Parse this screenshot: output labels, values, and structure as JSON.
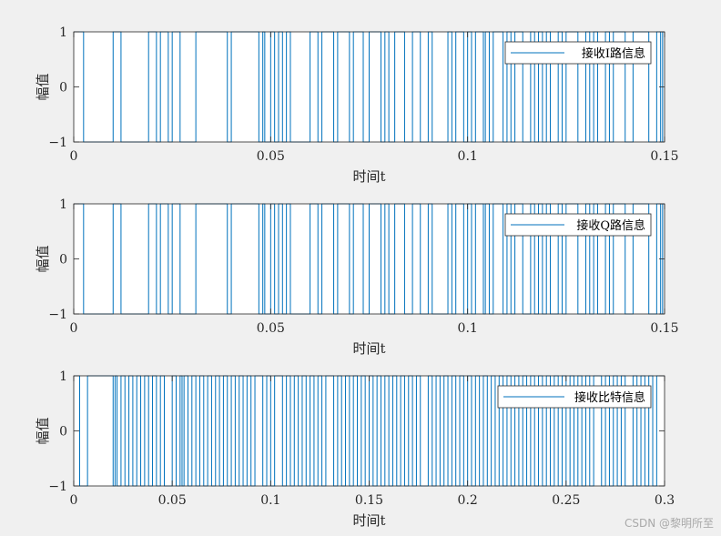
{
  "watermark": "CSDN @黎明所至",
  "colors": {
    "signal": "#0072BD",
    "axis": "#262626",
    "plot_bg": "#ffffff",
    "figure_bg": "#f0f0f0"
  },
  "chart_data": [
    {
      "type": "line",
      "subtype": "stairs",
      "xlabel": "时间t",
      "ylabel": "幅值",
      "xlim": [
        0,
        0.15
      ],
      "ylim": [
        -1,
        1
      ],
      "xticks": [
        0,
        0.05,
        0.1,
        0.15
      ],
      "xtick_labels": [
        "0",
        "0.05",
        "0.1",
        "0.15"
      ],
      "yticks": [
        -1,
        0,
        1
      ],
      "ytick_labels": [
        "−1",
        "0",
        "1"
      ],
      "legend_position": "top-right",
      "series": [
        {
          "name": "接收I路信息",
          "start_value": 1,
          "transitions": [
            0.0025,
            0.01,
            0.012,
            0.019,
            0.021,
            0.022,
            0.024,
            0.025,
            0.027,
            0.031,
            0.039,
            0.04,
            0.047,
            0.048,
            0.0485,
            0.05,
            0.051,
            0.052,
            0.053,
            0.054,
            0.055,
            0.06,
            0.062,
            0.063,
            0.066,
            0.067,
            0.07,
            0.071,
            0.0735,
            0.075,
            0.078,
            0.079,
            0.08,
            0.0815,
            0.084,
            0.086,
            0.088,
            0.09,
            0.091,
            0.095,
            0.096,
            0.097,
            0.099,
            0.1,
            0.101,
            0.102,
            0.104,
            0.1045,
            0.1055,
            0.1065,
            0.109,
            0.11,
            0.111,
            0.112,
            0.114,
            0.116,
            0.117,
            0.118,
            0.119,
            0.12,
            0.121,
            0.123,
            0.124,
            0.125,
            0.128,
            0.13,
            0.131,
            0.132,
            0.133,
            0.135,
            0.136,
            0.137,
            0.14,
            0.142,
            0.146,
            0.148,
            0.149,
            0.1495
          ]
        }
      ]
    },
    {
      "type": "line",
      "subtype": "stairs",
      "xlabel": "时间t",
      "ylabel": "幅值",
      "xlim": [
        0,
        0.15
      ],
      "ylim": [
        -1,
        1
      ],
      "xticks": [
        0,
        0.05,
        0.1,
        0.15
      ],
      "xtick_labels": [
        "0",
        "0.05",
        "0.1",
        "0.15"
      ],
      "yticks": [
        -1,
        0,
        1
      ],
      "ytick_labels": [
        "−1",
        "0",
        "1"
      ],
      "legend_position": "top-right",
      "series": [
        {
          "name": "接收Q路信息",
          "start_value": 1,
          "transitions": [
            0.0025,
            0.01,
            0.012,
            0.019,
            0.021,
            0.022,
            0.024,
            0.025,
            0.027,
            0.031,
            0.039,
            0.04,
            0.047,
            0.048,
            0.0485,
            0.05,
            0.051,
            0.052,
            0.053,
            0.054,
            0.055,
            0.06,
            0.062,
            0.063,
            0.066,
            0.067,
            0.07,
            0.071,
            0.0735,
            0.075,
            0.078,
            0.079,
            0.08,
            0.0815,
            0.084,
            0.086,
            0.088,
            0.09,
            0.091,
            0.095,
            0.096,
            0.097,
            0.099,
            0.1,
            0.101,
            0.102,
            0.104,
            0.1045,
            0.1055,
            0.1065,
            0.109,
            0.11,
            0.111,
            0.112,
            0.114,
            0.116,
            0.117,
            0.118,
            0.119,
            0.12,
            0.121,
            0.123,
            0.124,
            0.125,
            0.128,
            0.13,
            0.131,
            0.132,
            0.133,
            0.135,
            0.136,
            0.137,
            0.14,
            0.142,
            0.146,
            0.148,
            0.149,
            0.1495
          ]
        }
      ]
    },
    {
      "type": "line",
      "subtype": "stairs",
      "xlabel": "时间t",
      "ylabel": "幅值",
      "xlim": [
        0,
        0.3
      ],
      "ylim": [
        -1,
        1
      ],
      "xticks": [
        0,
        0.05,
        0.1,
        0.15,
        0.2,
        0.25,
        0.3
      ],
      "xtick_labels": [
        "0",
        "0.05",
        "0.1",
        "0.15",
        "0.2",
        "0.25",
        "0.3"
      ],
      "yticks": [
        -1,
        0,
        1
      ],
      "ytick_labels": [
        "−1",
        "0",
        "1"
      ],
      "legend_position": "top-right",
      "series": [
        {
          "name": "接收比特信息",
          "start_value": 1,
          "transitions": [
            0.003,
            0.007,
            0.02,
            0.021,
            0.022,
            0.024,
            0.026,
            0.028,
            0.03,
            0.032,
            0.034,
            0.036,
            0.038,
            0.04,
            0.042,
            0.044,
            0.046,
            0.05,
            0.052,
            0.054,
            0.055,
            0.056,
            0.058,
            0.06,
            0.062,
            0.064,
            0.066,
            0.068,
            0.07,
            0.072,
            0.074,
            0.076,
            0.078,
            0.08,
            0.082,
            0.084,
            0.086,
            0.088,
            0.09,
            0.092,
            0.096,
            0.098,
            0.1,
            0.102,
            0.106,
            0.108,
            0.11,
            0.112,
            0.114,
            0.116,
            0.118,
            0.12,
            0.122,
            0.124,
            0.126,
            0.128,
            0.132,
            0.134,
            0.136,
            0.138,
            0.14,
            0.142,
            0.144,
            0.146,
            0.148,
            0.15,
            0.152,
            0.154,
            0.156,
            0.158,
            0.16,
            0.162,
            0.164,
            0.166,
            0.168,
            0.17,
            0.172,
            0.174,
            0.176,
            0.18,
            0.182,
            0.184,
            0.186,
            0.188,
            0.19,
            0.192,
            0.194,
            0.196,
            0.198,
            0.2,
            0.202,
            0.204,
            0.206,
            0.208,
            0.21,
            0.212,
            0.214,
            0.216,
            0.218,
            0.22,
            0.222,
            0.224,
            0.226,
            0.228,
            0.23,
            0.232,
            0.234,
            0.236,
            0.238,
            0.24,
            0.242,
            0.244,
            0.246,
            0.248,
            0.25,
            0.252,
            0.254,
            0.256,
            0.258,
            0.26,
            0.262,
            0.264,
            0.268,
            0.27,
            0.272,
            0.274,
            0.276,
            0.278,
            0.28,
            0.284,
            0.286,
            0.288,
            0.29,
            0.292,
            0.294,
            0.296
          ]
        }
      ]
    }
  ]
}
